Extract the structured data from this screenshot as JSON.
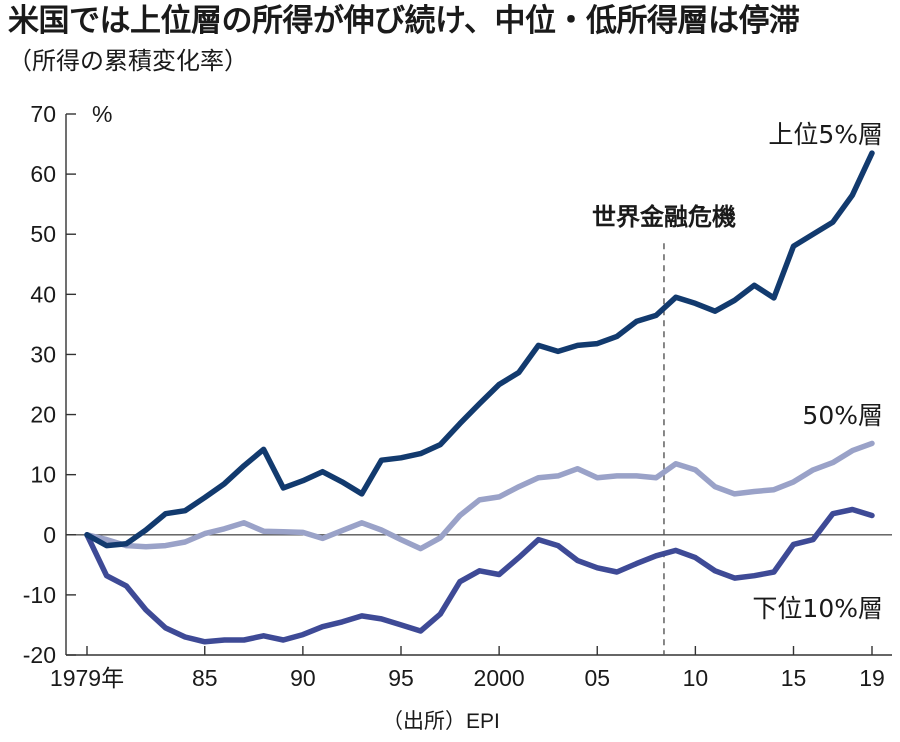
{
  "title": {
    "main": "米国では上位層の所得が伸び続け、中位・低所得層は停滞",
    "sub": "（所得の累積変化率）"
  },
  "source": "（出所）EPI",
  "chart_data": {
    "type": "line",
    "y_unit": "%",
    "ylim": [
      -20,
      70
    ],
    "y_ticks": [
      70,
      60,
      50,
      40,
      30,
      20,
      10,
      0,
      -10,
      -20
    ],
    "x_range": [
      1979,
      2019
    ],
    "x_ticks": [
      {
        "year": 1979,
        "label": "1979年"
      },
      {
        "year": 1985,
        "label": "85"
      },
      {
        "year": 1990,
        "label": "90"
      },
      {
        "year": 1995,
        "label": "95"
      },
      {
        "year": 2000,
        "label": "2000"
      },
      {
        "year": 2005,
        "label": "05"
      },
      {
        "year": 2010,
        "label": "10"
      },
      {
        "year": 2015,
        "label": "15"
      },
      {
        "year": 2019,
        "label": "19"
      }
    ],
    "x": [
      1979,
      1980,
      1981,
      1982,
      1983,
      1984,
      1985,
      1986,
      1987,
      1988,
      1989,
      1990,
      1991,
      1992,
      1993,
      1994,
      1995,
      1996,
      1997,
      1998,
      1999,
      2000,
      2001,
      2002,
      2003,
      2004,
      2005,
      2006,
      2007,
      2008,
      2009,
      2010,
      2011,
      2012,
      2013,
      2014,
      2015,
      2016,
      2017,
      2018,
      2019
    ],
    "event": {
      "label": "世界金融危機",
      "year": 2008.4
    },
    "series": [
      {
        "name": "上位5%層",
        "color": "#123a6e",
        "values": [
          0,
          -1.8,
          -1.5,
          0.8,
          3.5,
          4.0,
          6.2,
          8.5,
          11.5,
          14.2,
          7.8,
          9.0,
          10.5,
          8.8,
          6.8,
          12.4,
          12.8,
          13.5,
          15.0,
          18.5,
          21.8,
          25.0,
          27.0,
          31.5,
          30.5,
          31.5,
          31.8,
          33.0,
          35.5,
          36.5,
          39.5,
          38.5,
          37.2,
          39.0,
          41.5,
          39.4,
          48.0,
          50.0,
          52.0,
          56.5,
          63.5
        ]
      },
      {
        "name": "50%層",
        "color": "#9aa2c8",
        "values": [
          0,
          -0.8,
          -1.8,
          -2.0,
          -1.8,
          -1.2,
          0.2,
          1.0,
          2.0,
          0.6,
          0.5,
          0.4,
          -0.6,
          0.7,
          2.0,
          0.8,
          -0.8,
          -2.3,
          -0.5,
          3.2,
          5.8,
          6.3,
          8.0,
          9.5,
          9.8,
          11.0,
          9.5,
          9.8,
          9.8,
          9.5,
          11.8,
          10.8,
          8.0,
          6.8,
          7.2,
          7.5,
          8.8,
          10.8,
          12.0,
          14.0,
          15.2
        ]
      },
      {
        "name": "下位10%層",
        "color": "#3e4a96",
        "values": [
          0,
          -6.8,
          -8.5,
          -12.5,
          -15.5,
          -17.0,
          -17.8,
          -17.5,
          -17.5,
          -16.8,
          -17.5,
          -16.6,
          -15.3,
          -14.5,
          -13.5,
          -14.0,
          -15.0,
          -16.0,
          -13.2,
          -7.8,
          -6.0,
          -6.6,
          -3.8,
          -0.8,
          -1.8,
          -4.3,
          -5.5,
          -6.2,
          -4.8,
          -3.5,
          -2.6,
          -3.8,
          -6.0,
          -7.2,
          -6.8,
          -6.2,
          -1.6,
          -0.8,
          3.5,
          4.2,
          3.2
        ]
      }
    ]
  }
}
